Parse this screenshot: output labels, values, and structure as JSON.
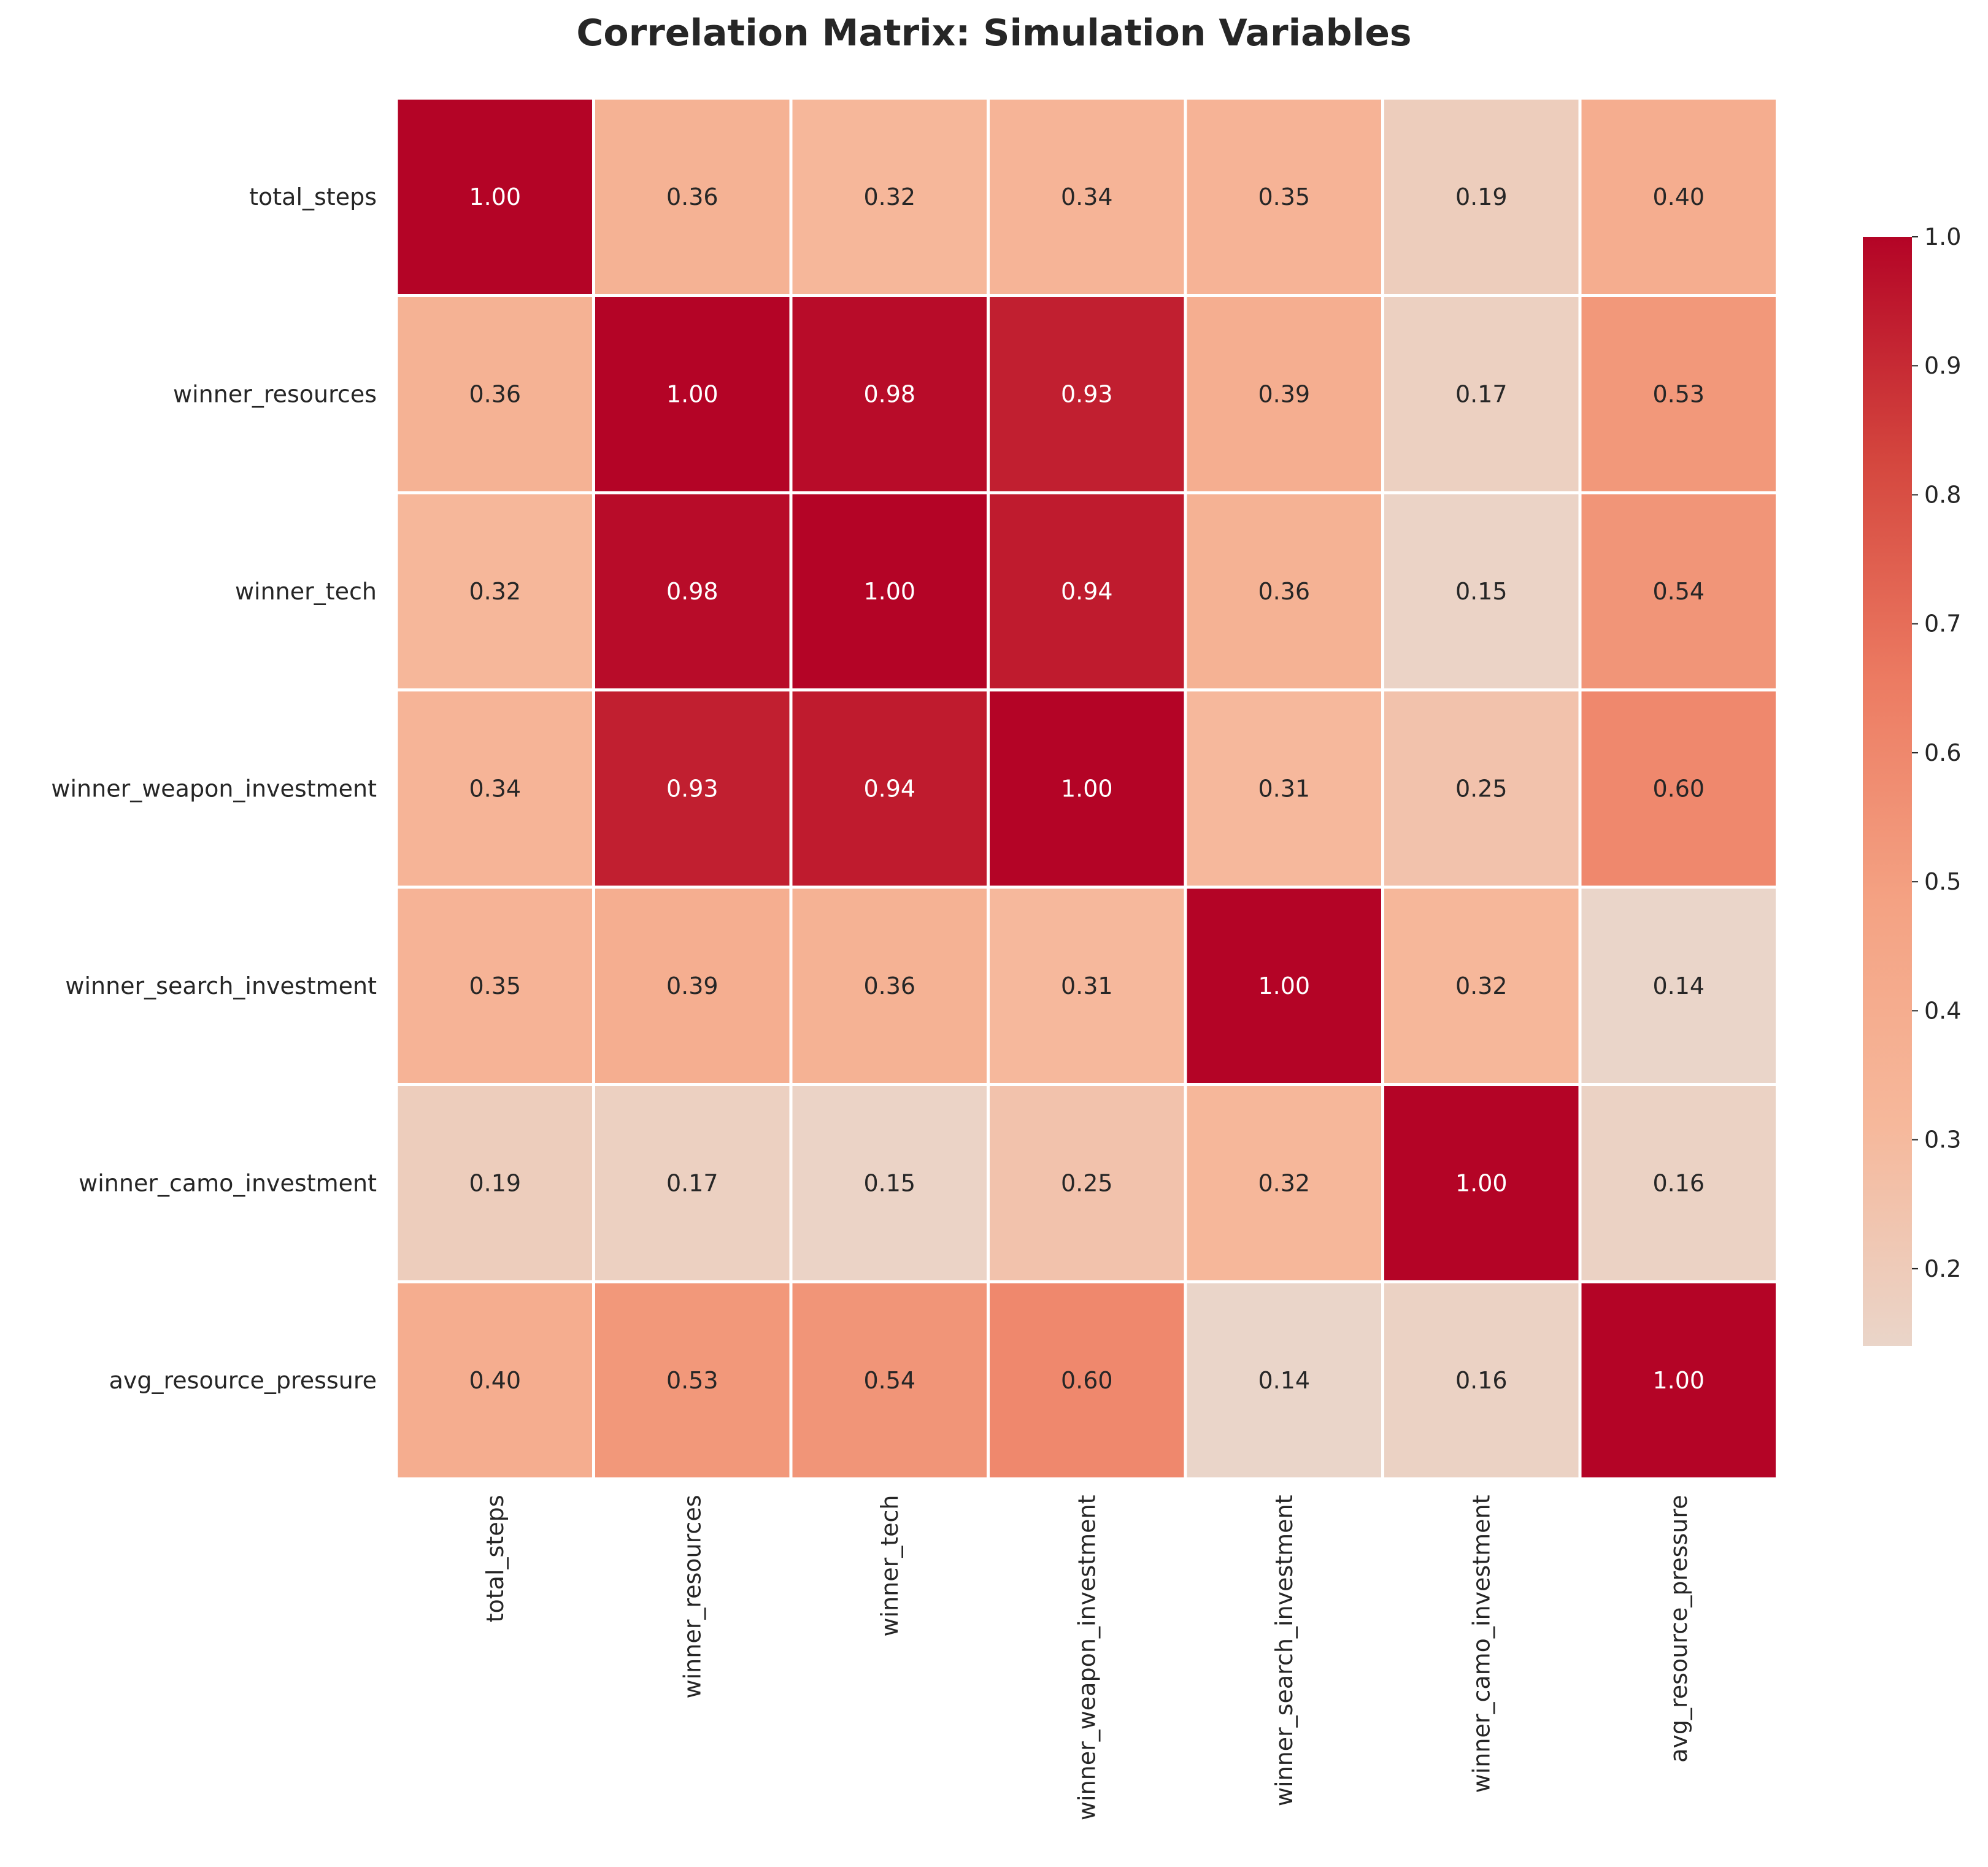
{
  "chart_data": {
    "type": "heatmap",
    "title": "Correlation Matrix: Simulation Variables",
    "xlabel": "",
    "ylabel": "",
    "row_labels": [
      "total_steps",
      "winner_resources",
      "winner_tech",
      "winner_weapon_investment",
      "winner_search_investment",
      "winner_camo_investment",
      "avg_resource_pressure"
    ],
    "col_labels": [
      "total_steps",
      "winner_resources",
      "winner_tech",
      "winner_weapon_investment",
      "winner_search_investment",
      "winner_camo_investment",
      "avg_resource_pressure"
    ],
    "values": [
      [
        1.0,
        0.36,
        0.32,
        0.34,
        0.35,
        0.19,
        0.4
      ],
      [
        0.36,
        1.0,
        0.98,
        0.93,
        0.39,
        0.17,
        0.53
      ],
      [
        0.32,
        0.98,
        1.0,
        0.94,
        0.36,
        0.15,
        0.54
      ],
      [
        0.34,
        0.93,
        0.94,
        1.0,
        0.31,
        0.25,
        0.6
      ],
      [
        0.35,
        0.39,
        0.36,
        0.31,
        1.0,
        0.32,
        0.14
      ],
      [
        0.19,
        0.17,
        0.15,
        0.25,
        0.32,
        1.0,
        0.16
      ],
      [
        0.4,
        0.53,
        0.54,
        0.6,
        0.14,
        0.16,
        1.0
      ]
    ],
    "value_format": "2 decimals",
    "colormap": "coolwarm",
    "colorbar": {
      "range": [
        0.14,
        1.0
      ],
      "ticks": [
        "0.2",
        "0.3",
        "0.4",
        "0.5",
        "0.6",
        "0.7",
        "0.8",
        "0.9",
        "1.0"
      ],
      "tick_values": [
        0.2,
        0.3,
        0.4,
        0.5,
        0.6,
        0.7,
        0.8,
        0.9,
        1.0
      ]
    },
    "colors": {
      "low": "#ead5c9",
      "mid_low": "#f6b89b",
      "mid": "#f4a283",
      "mid_high": "#ec7b62",
      "high": "#b40426",
      "text_dark": "#262626",
      "text_light": "#ffffff",
      "cell_border": "#ffffff"
    },
    "grid": false,
    "legend": "colorbar-right"
  }
}
